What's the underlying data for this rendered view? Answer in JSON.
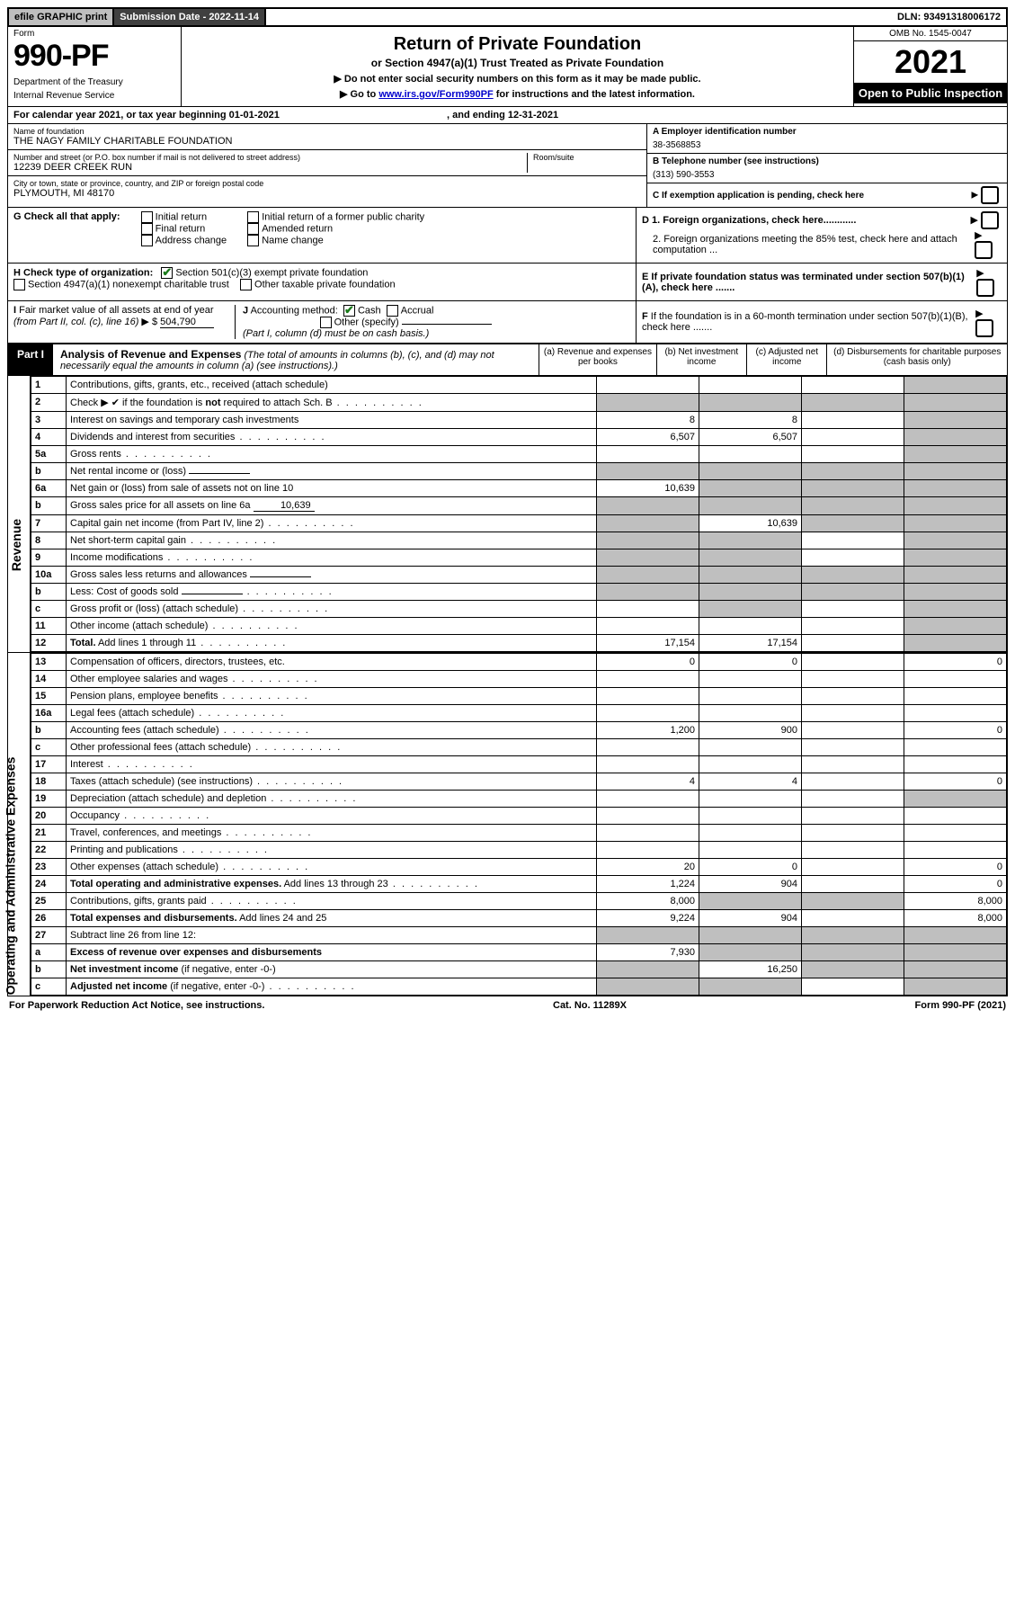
{
  "topbar": {
    "efile": "efile GRAPHIC print",
    "submission_label": "Submission Date - 2022-11-14",
    "dln": "DLN: 93491318006172"
  },
  "header": {
    "form_label": "Form",
    "form_number": "990-PF",
    "dept1": "Department of the Treasury",
    "dept2": "Internal Revenue Service",
    "title": "Return of Private Foundation",
    "subtitle": "or Section 4947(a)(1) Trust Treated as Private Foundation",
    "warn1": "▶ Do not enter social security numbers on this form as it may be made public.",
    "warn2_prefix": "▶ Go to ",
    "warn2_link": "www.irs.gov/Form990PF",
    "warn2_suffix": " for instructions and the latest information.",
    "omb": "OMB No. 1545-0047",
    "year": "2021",
    "open": "Open to Public Inspection"
  },
  "calendar": {
    "text_a": "For calendar year 2021, or tax year beginning 01-01-2021",
    "text_b": ", and ending 12-31-2021"
  },
  "foundation": {
    "name_label": "Name of foundation",
    "name": "THE NAGY FAMILY CHARITABLE FOUNDATION",
    "addr_label": "Number and street (or P.O. box number if mail is not delivered to street address)",
    "room_label": "Room/suite",
    "addr": "12239 DEER CREEK RUN",
    "city_label": "City or town, state or province, country, and ZIP or foreign postal code",
    "city": "PLYMOUTH, MI  48170",
    "ein_label": "A Employer identification number",
    "ein": "38-3568853",
    "phone_label": "B Telephone number (see instructions)",
    "phone": "(313) 590-3553",
    "c_label": "C If exemption application is pending, check here"
  },
  "sectionG": {
    "label": "G Check all that apply:",
    "opts": [
      "Initial return",
      "Final return",
      "Address change",
      "Initial return of a former public charity",
      "Amended return",
      "Name change"
    ]
  },
  "sectionD": {
    "d1": "D 1. Foreign organizations, check here............",
    "d2": "2. Foreign organizations meeting the 85% test, check here and attach computation ..."
  },
  "sectionH": {
    "label": "H Check type of organization:",
    "opt1": "Section 501(c)(3) exempt private foundation",
    "opt2": "Section 4947(a)(1) nonexempt charitable trust",
    "opt3": "Other taxable private foundation"
  },
  "sectionE": {
    "label": "E If private foundation status was terminated under section 507(b)(1)(A), check here ......."
  },
  "sectionI": {
    "label": "I Fair market value of all assets at end of year (from Part II, col. (c), line 16) ▶ $",
    "value": "504,790"
  },
  "sectionJ": {
    "label": "J Accounting method:",
    "cash": "Cash",
    "accrual": "Accrual",
    "other": "Other (specify)",
    "note": "(Part I, column (d) must be on cash basis.)"
  },
  "sectionF": {
    "label": "F If the foundation is in a 60-month termination under section 507(b)(1)(B), check here ......."
  },
  "part1": {
    "tab": "Part I",
    "title": "Analysis of Revenue and Expenses",
    "title_note": " (The total of amounts in columns (b), (c), and (d) may not necessarily equal the amounts in column (a) (see instructions).)",
    "col_a": "(a) Revenue and expenses per books",
    "col_b": "(b) Net investment income",
    "col_c": "(c) Adjusted net income",
    "col_d": "(d) Disbursements for charitable purposes (cash basis only)"
  },
  "sidelabels": {
    "revenue": "Revenue",
    "expenses": "Operating and Administrative Expenses"
  },
  "rows": [
    {
      "n": "1",
      "desc": "Contributions, gifts, grants, etc., received (attach schedule)",
      "a": "",
      "b": "",
      "c": "",
      "d": "grey"
    },
    {
      "n": "2",
      "desc": "Check ▶ ✔ if the foundation is <b>not</b> required to attach Sch. B",
      "dots": true,
      "a": "grey",
      "b": "grey",
      "c": "grey",
      "d": "grey"
    },
    {
      "n": "3",
      "desc": "Interest on savings and temporary cash investments",
      "a": "8",
      "b": "8",
      "c": "",
      "d": "grey"
    },
    {
      "n": "4",
      "desc": "Dividends and interest from securities",
      "dots": true,
      "a": "6,507",
      "b": "6,507",
      "c": "",
      "d": "grey"
    },
    {
      "n": "5a",
      "desc": "Gross rents",
      "dots": true,
      "a": "",
      "b": "",
      "c": "",
      "d": "grey"
    },
    {
      "n": "b",
      "desc": "Net rental income or (loss)",
      "inline": "",
      "a": "grey",
      "b": "grey",
      "c": "grey",
      "d": "grey"
    },
    {
      "n": "6a",
      "desc": "Net gain or (loss) from sale of assets not on line 10",
      "a": "10,639",
      "b": "grey",
      "c": "grey",
      "d": "grey"
    },
    {
      "n": "b",
      "desc": "Gross sales price for all assets on line 6a",
      "inline": "10,639",
      "a": "grey",
      "b": "grey",
      "c": "grey",
      "d": "grey"
    },
    {
      "n": "7",
      "desc": "Capital gain net income (from Part IV, line 2)",
      "dots": true,
      "a": "grey",
      "b": "10,639",
      "c": "grey",
      "d": "grey"
    },
    {
      "n": "8",
      "desc": "Net short-term capital gain",
      "dots": true,
      "a": "grey",
      "b": "grey",
      "c": "",
      "d": "grey"
    },
    {
      "n": "9",
      "desc": "Income modifications",
      "dots": true,
      "a": "grey",
      "b": "grey",
      "c": "",
      "d": "grey"
    },
    {
      "n": "10a",
      "desc": "Gross sales less returns and allowances",
      "inline": "",
      "a": "grey",
      "b": "grey",
      "c": "grey",
      "d": "grey"
    },
    {
      "n": "b",
      "desc": "Less: Cost of goods sold",
      "dots": true,
      "inline": "",
      "a": "grey",
      "b": "grey",
      "c": "grey",
      "d": "grey"
    },
    {
      "n": "c",
      "desc": "Gross profit or (loss) (attach schedule)",
      "dots": true,
      "a": "",
      "b": "grey",
      "c": "",
      "d": "grey"
    },
    {
      "n": "11",
      "desc": "Other income (attach schedule)",
      "dots": true,
      "a": "",
      "b": "",
      "c": "",
      "d": "grey"
    },
    {
      "n": "12",
      "desc": "<b>Total.</b> Add lines 1 through 11",
      "dots": true,
      "a": "17,154",
      "b": "17,154",
      "c": "",
      "d": "grey"
    }
  ],
  "exp_rows": [
    {
      "n": "13",
      "desc": "Compensation of officers, directors, trustees, etc.",
      "a": "0",
      "b": "0",
      "c": "",
      "d": "0"
    },
    {
      "n": "14",
      "desc": "Other employee salaries and wages",
      "dots": true,
      "a": "",
      "b": "",
      "c": "",
      "d": ""
    },
    {
      "n": "15",
      "desc": "Pension plans, employee benefits",
      "dots": true,
      "a": "",
      "b": "",
      "c": "",
      "d": ""
    },
    {
      "n": "16a",
      "desc": "Legal fees (attach schedule)",
      "dots": true,
      "a": "",
      "b": "",
      "c": "",
      "d": ""
    },
    {
      "n": "b",
      "desc": "Accounting fees (attach schedule)",
      "dots": true,
      "a": "1,200",
      "b": "900",
      "c": "",
      "d": "0"
    },
    {
      "n": "c",
      "desc": "Other professional fees (attach schedule)",
      "dots": true,
      "a": "",
      "b": "",
      "c": "",
      "d": ""
    },
    {
      "n": "17",
      "desc": "Interest",
      "dots": true,
      "a": "",
      "b": "",
      "c": "",
      "d": ""
    },
    {
      "n": "18",
      "desc": "Taxes (attach schedule) (see instructions)",
      "dots": true,
      "a": "4",
      "b": "4",
      "c": "",
      "d": "0"
    },
    {
      "n": "19",
      "desc": "Depreciation (attach schedule) and depletion",
      "dots": true,
      "a": "",
      "b": "",
      "c": "",
      "d": "grey"
    },
    {
      "n": "20",
      "desc": "Occupancy",
      "dots": true,
      "a": "",
      "b": "",
      "c": "",
      "d": ""
    },
    {
      "n": "21",
      "desc": "Travel, conferences, and meetings",
      "dots": true,
      "a": "",
      "b": "",
      "c": "",
      "d": ""
    },
    {
      "n": "22",
      "desc": "Printing and publications",
      "dots": true,
      "a": "",
      "b": "",
      "c": "",
      "d": ""
    },
    {
      "n": "23",
      "desc": "Other expenses (attach schedule)",
      "dots": true,
      "a": "20",
      "b": "0",
      "c": "",
      "d": "0"
    },
    {
      "n": "24",
      "desc": "<b>Total operating and administrative expenses.</b> Add lines 13 through 23",
      "dots": true,
      "a": "1,224",
      "b": "904",
      "c": "",
      "d": "0"
    },
    {
      "n": "25",
      "desc": "Contributions, gifts, grants paid",
      "dots": true,
      "a": "8,000",
      "b": "grey",
      "c": "grey",
      "d": "8,000"
    },
    {
      "n": "26",
      "desc": "<b>Total expenses and disbursements.</b> Add lines 24 and 25",
      "a": "9,224",
      "b": "904",
      "c": "",
      "d": "8,000"
    },
    {
      "n": "27",
      "desc": "Subtract line 26 from line 12:",
      "a": "grey",
      "b": "grey",
      "c": "grey",
      "d": "grey"
    },
    {
      "n": "a",
      "desc": "<b>Excess of revenue over expenses and disbursements</b>",
      "a": "7,930",
      "b": "grey",
      "c": "grey",
      "d": "grey"
    },
    {
      "n": "b",
      "desc": "<b>Net investment income</b> (if negative, enter -0-)",
      "a": "grey",
      "b": "16,250",
      "c": "grey",
      "d": "grey"
    },
    {
      "n": "c",
      "desc": "<b>Adjusted net income</b> (if negative, enter -0-)",
      "dots": true,
      "a": "grey",
      "b": "grey",
      "c": "",
      "d": "grey"
    }
  ],
  "footer": {
    "left": "For Paperwork Reduction Act Notice, see instructions.",
    "mid": "Cat. No. 11289X",
    "right": "Form 990-PF (2021)"
  },
  "colors": {
    "grey_bg": "#bfbfbf",
    "black": "#000000",
    "link": "#0000cc",
    "check_green": "#1a7a1a"
  }
}
